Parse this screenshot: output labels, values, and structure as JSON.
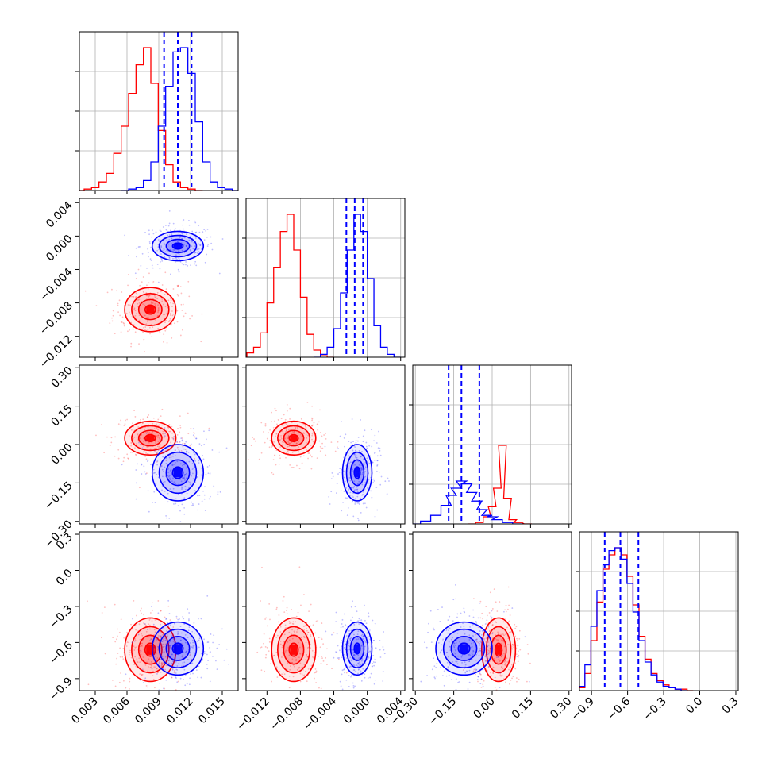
{
  "chart_data": {
    "type": "corner",
    "description_free": true,
    "colors": {
      "red": "#ff0000",
      "blue": "#0000ff",
      "grid": "#b0b0b0"
    },
    "parameters": [
      {
        "range": [
          0.0015,
          0.0165
        ],
        "ticks": [
          "0.003",
          "0.006",
          "0.009",
          "0.012",
          "0.015"
        ],
        "tick_values": [
          0.003,
          0.006,
          0.009,
          0.012,
          0.015
        ],
        "quantiles_blue": [
          0.0095,
          0.0108,
          0.0121
        ]
      },
      {
        "range": [
          -0.0145,
          0.0045
        ],
        "ticks": [
          "−0.012",
          "−0.008",
          "−0.004",
          "0.000",
          "0.004"
        ],
        "tick_values": [
          -0.012,
          -0.008,
          -0.004,
          0.0,
          0.004
        ],
        "quantiles_blue": [
          -0.0025,
          -0.0015,
          -0.0005
        ]
      },
      {
        "range": [
          -0.31,
          0.31
        ],
        "ticks": [
          "−0.30",
          "−0.15",
          "0.00",
          "0.15",
          "0.30"
        ],
        "tick_values": [
          -0.3,
          -0.15,
          0.0,
          0.15,
          0.3
        ],
        "quantiles_blue": [
          -0.17,
          -0.12,
          -0.05
        ]
      },
      {
        "range": [
          -1.0,
          0.32
        ],
        "ticks": [
          "−0.9",
          "−0.6",
          "−0.3",
          "0.0",
          "0.3"
        ],
        "tick_values": [
          -0.9,
          -0.6,
          -0.3,
          0.0,
          0.3
        ],
        "quantiles_blue": [
          -0.79,
          -0.66,
          -0.51
        ]
      }
    ],
    "histograms": [
      {
        "red": [
          [
            0.0016,
            0.0
          ],
          [
            0.0023,
            0.01
          ],
          [
            0.003,
            0.02
          ],
          [
            0.0037,
            0.06
          ],
          [
            0.0044,
            0.12
          ],
          [
            0.0051,
            0.26
          ],
          [
            0.0058,
            0.45
          ],
          [
            0.0065,
            0.68
          ],
          [
            0.0072,
            0.88
          ],
          [
            0.0079,
            1.0
          ],
          [
            0.0086,
            0.75
          ],
          [
            0.0093,
            0.42
          ],
          [
            0.01,
            0.18
          ],
          [
            0.0107,
            0.06
          ],
          [
            0.0114,
            0.02
          ],
          [
            0.0121,
            0.01
          ],
          [
            0.0128,
            0.0
          ]
        ],
        "blue": [
          [
            0.0058,
            0.0
          ],
          [
            0.0065,
            0.01
          ],
          [
            0.0072,
            0.02
          ],
          [
            0.0079,
            0.07
          ],
          [
            0.0086,
            0.2
          ],
          [
            0.0093,
            0.45
          ],
          [
            0.01,
            0.73
          ],
          [
            0.0107,
            0.97
          ],
          [
            0.0114,
            1.0
          ],
          [
            0.0121,
            0.82
          ],
          [
            0.0128,
            0.48
          ],
          [
            0.0135,
            0.2
          ],
          [
            0.0142,
            0.06
          ],
          [
            0.0149,
            0.02
          ],
          [
            0.0156,
            0.01
          ],
          [
            0.0163,
            0.0
          ]
        ]
      },
      {
        "red": [
          [
            -0.014,
            0.03
          ],
          [
            -0.0132,
            0.07
          ],
          [
            -0.0124,
            0.17
          ],
          [
            -0.0116,
            0.38
          ],
          [
            -0.0108,
            0.63
          ],
          [
            -0.01,
            0.88
          ],
          [
            -0.0092,
            1.0
          ],
          [
            -0.0084,
            0.75
          ],
          [
            -0.0076,
            0.42
          ],
          [
            -0.0068,
            0.16
          ],
          [
            -0.006,
            0.05
          ],
          [
            -0.0052,
            0.01
          ],
          [
            -0.0044,
            0.0
          ]
        ],
        "blue": [
          [
            -0.006,
            0.0
          ],
          [
            -0.0052,
            0.02
          ],
          [
            -0.0044,
            0.07
          ],
          [
            -0.0036,
            0.2
          ],
          [
            -0.0028,
            0.45
          ],
          [
            -0.002,
            0.75
          ],
          [
            -0.0012,
            1.0
          ],
          [
            -0.0004,
            0.88
          ],
          [
            0.0004,
            0.55
          ],
          [
            0.0012,
            0.22
          ],
          [
            0.002,
            0.07
          ],
          [
            0.0028,
            0.02
          ],
          [
            0.0036,
            0.0
          ]
        ]
      },
      {
        "red": [
          [
            -0.08,
            0.0
          ],
          [
            -0.05,
            0.01
          ],
          [
            -0.02,
            0.05
          ],
          [
            0.0,
            0.12
          ],
          [
            0.02,
            0.25
          ],
          [
            0.04,
            0.55
          ],
          [
            0.06,
            0.18
          ],
          [
            0.08,
            0.03
          ],
          [
            0.1,
            0.01
          ],
          [
            0.14,
            0.0
          ]
        ],
        "blue": [
          [
            -0.3,
            0.0
          ],
          [
            -0.26,
            0.02
          ],
          [
            -0.22,
            0.06
          ],
          [
            -0.18,
            0.13
          ],
          [
            -0.16,
            0.2
          ],
          [
            -0.14,
            0.25
          ],
          [
            -0.12,
            0.3
          ],
          [
            -0.1,
            0.28
          ],
          [
            -0.08,
            0.22
          ],
          [
            -0.06,
            0.16
          ],
          [
            -0.04,
            0.1
          ],
          [
            -0.02,
            0.06
          ],
          [
            0.0,
            0.05
          ],
          [
            0.02,
            0.03
          ],
          [
            0.06,
            0.01
          ],
          [
            0.1,
            0.0
          ]
        ]
      },
      {
        "red": [
          [
            -0.98,
            0.02
          ],
          [
            -0.93,
            0.12
          ],
          [
            -0.88,
            0.35
          ],
          [
            -0.83,
            0.62
          ],
          [
            -0.78,
            0.85
          ],
          [
            -0.73,
            0.95
          ],
          [
            -0.68,
            1.0
          ],
          [
            -0.63,
            0.95
          ],
          [
            -0.58,
            0.8
          ],
          [
            -0.53,
            0.6
          ],
          [
            -0.48,
            0.38
          ],
          [
            -0.43,
            0.22
          ],
          [
            -0.38,
            0.12
          ],
          [
            -0.33,
            0.07
          ],
          [
            -0.28,
            0.04
          ],
          [
            -0.23,
            0.02
          ],
          [
            -0.18,
            0.01
          ],
          [
            -0.13,
            0.01
          ],
          [
            -0.08,
            0.0
          ]
        ],
        "blue": [
          [
            -0.98,
            0.03
          ],
          [
            -0.93,
            0.18
          ],
          [
            -0.88,
            0.45
          ],
          [
            -0.83,
            0.7
          ],
          [
            -0.78,
            0.88
          ],
          [
            -0.73,
            0.98
          ],
          [
            -0.68,
            1.0
          ],
          [
            -0.63,
            0.92
          ],
          [
            -0.58,
            0.75
          ],
          [
            -0.53,
            0.55
          ],
          [
            -0.48,
            0.35
          ],
          [
            -0.43,
            0.2
          ],
          [
            -0.38,
            0.11
          ],
          [
            -0.33,
            0.06
          ],
          [
            -0.28,
            0.03
          ],
          [
            -0.23,
            0.02
          ],
          [
            -0.18,
            0.01
          ],
          [
            -0.13,
            0.0
          ]
        ]
      }
    ],
    "hist_grid_fracs": [
      0.25,
      0.5,
      0.75
    ],
    "clusters": {
      "red": [
        0.0082,
        -0.0088,
        0.025,
        -0.66
      ],
      "blue": [
        0.0108,
        -0.0012,
        -0.11,
        -0.65
      ]
    },
    "spreads": {
      "red": [
        0.0011,
        0.0012,
        0.03,
        0.12
      ],
      "blue": [
        0.0011,
        0.0008,
        0.05,
        0.1
      ]
    },
    "layout_note_free": true
  }
}
